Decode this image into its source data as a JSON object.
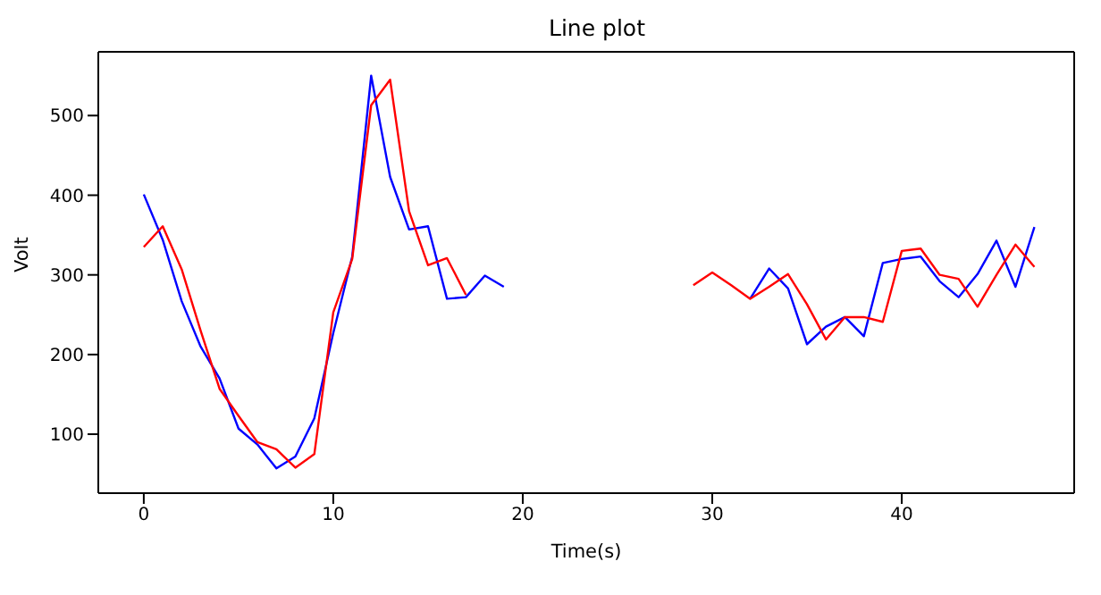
{
  "chart_data": {
    "type": "line",
    "title": "Line plot",
    "xlabel": "Time(s)",
    "ylabel": "Volt",
    "x": [
      0,
      1,
      2,
      3,
      4,
      5,
      6,
      7,
      8,
      9,
      10,
      11,
      12,
      13,
      14,
      15,
      16,
      17,
      18,
      19,
      20,
      21,
      22,
      23,
      24,
      25,
      26,
      27,
      28,
      29,
      30,
      31,
      32,
      33,
      34,
      35,
      36,
      37,
      38,
      39,
      40,
      41,
      42,
      43,
      44,
      45,
      46,
      47
    ],
    "series": [
      {
        "color": "#0000ff",
        "values": [
          401,
          344,
          267,
          210,
          170,
          107,
          87,
          57,
          72,
          120,
          227,
          323,
          550,
          423,
          357,
          361,
          270,
          272,
          299,
          285,
          null,
          null,
          null,
          null,
          null,
          null,
          null,
          null,
          null,
          null,
          null,
          null,
          270,
          308,
          283,
          213,
          235,
          247,
          223,
          315,
          320,
          323,
          292,
          272,
          301,
          343,
          285,
          360
        ]
      },
      {
        "color": "#ff0000",
        "values": [
          335,
          361,
          307,
          230,
          157,
          123,
          90,
          81,
          58,
          75,
          253,
          320,
          513,
          545,
          380,
          312,
          321,
          275,
          null,
          null,
          null,
          null,
          null,
          null,
          null,
          null,
          null,
          null,
          null,
          287,
          303,
          287,
          270,
          285,
          301,
          263,
          219,
          247,
          247,
          241,
          330,
          333,
          300,
          295,
          260,
          300,
          338,
          310
        ]
      }
    ],
    "xlim": [
      -2.4,
      49.1
    ],
    "ylim": [
      26,
      580
    ],
    "xticks": [
      0,
      10,
      20,
      30,
      40
    ],
    "yticks": [
      100,
      200,
      300,
      400,
      500
    ],
    "grid": false,
    "legend": false
  }
}
